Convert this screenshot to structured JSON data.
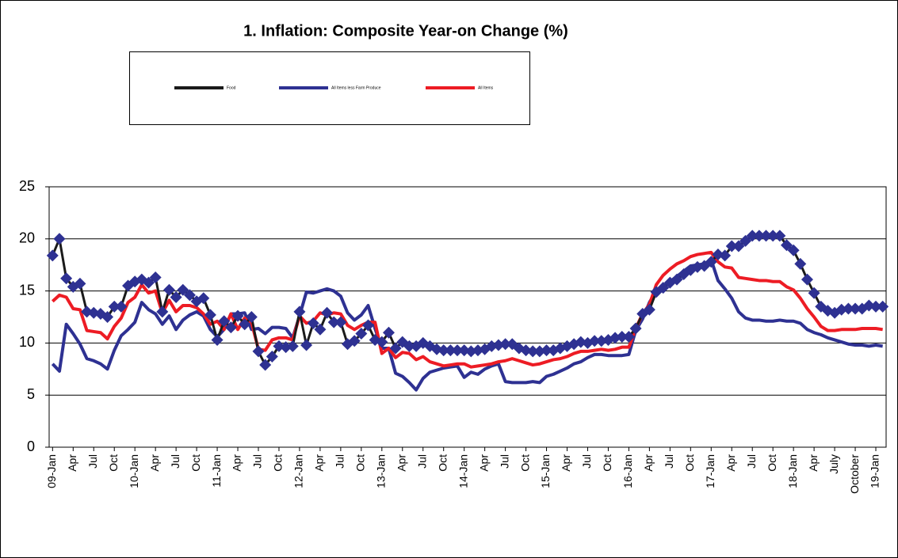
{
  "chart_data": {
    "type": "line",
    "title": "1. Inflation: Composite Year-on Change (%)",
    "categories": [
      "09-Jan",
      null,
      null,
      "Apr",
      null,
      null,
      "Jul",
      null,
      null,
      "Oct",
      null,
      null,
      "10-Jan",
      null,
      null,
      "Apr",
      null,
      null,
      "Jul",
      null,
      null,
      "Oct",
      null,
      null,
      "11-Jan",
      null,
      null,
      "Apr",
      null,
      null,
      "Jul",
      null,
      null,
      "Oct",
      null,
      null,
      "12-Jan",
      null,
      null,
      "Apr",
      null,
      null,
      "Jul",
      null,
      null,
      "Oct",
      null,
      null,
      "13-Jan",
      null,
      null,
      "Apr",
      null,
      null,
      "Jul",
      null,
      null,
      "Oct",
      null,
      null,
      "14-Jan",
      null,
      null,
      "Apr",
      null,
      null,
      "Jul",
      null,
      null,
      "Oct",
      null,
      null,
      "15-Jan",
      null,
      null,
      "Apr",
      null,
      null,
      "Jul",
      null,
      null,
      "Oct",
      null,
      null,
      "16-Jan",
      null,
      null,
      "Apr",
      null,
      null,
      "Jul",
      null,
      null,
      "Oct",
      null,
      null,
      "17-Jan",
      null,
      null,
      "Apr",
      null,
      null,
      "Jul",
      null,
      null,
      "Oct",
      null,
      null,
      "18-Jan",
      null,
      null,
      "Apr",
      null,
      null,
      "July",
      null,
      null,
      "October",
      null,
      null,
      "19-Jan",
      null
    ],
    "series": [
      {
        "name": "Food",
        "color": "#1a1a1a",
        "marker_color": "#2e3192",
        "values": [
          18.4,
          20.0,
          16.2,
          15.4,
          15.7,
          13.0,
          12.9,
          12.8,
          12.5,
          13.5,
          13.5,
          15.5,
          15.9,
          16.1,
          15.8,
          16.3,
          13.0,
          15.1,
          14.4,
          15.1,
          14.6,
          14.0,
          14.3,
          12.7,
          10.3,
          12.1,
          11.5,
          12.6,
          11.8,
          12.5,
          9.2,
          7.9,
          8.7,
          9.7,
          9.6,
          9.7,
          13.0,
          9.8,
          11.9,
          11.3,
          12.9,
          12.0,
          12.0,
          9.9,
          10.2,
          10.9,
          11.7,
          10.3,
          10.1,
          11.0,
          9.5,
          10.1,
          9.7,
          9.7,
          10.0,
          9.7,
          9.4,
          9.3,
          9.3,
          9.3,
          9.3,
          9.2,
          9.3,
          9.4,
          9.7,
          9.8,
          9.9,
          9.9,
          9.5,
          9.3,
          9.2,
          9.2,
          9.3,
          9.3,
          9.5,
          9.7,
          9.9,
          10.1,
          10.0,
          10.2,
          10.2,
          10.3,
          10.5,
          10.6,
          10.6,
          11.4,
          12.8,
          13.2,
          14.9,
          15.3,
          15.8,
          16.1,
          16.6,
          17.0,
          17.3,
          17.4,
          17.8,
          18.5,
          18.4,
          19.3,
          19.3,
          19.8,
          20.3,
          20.3,
          20.3,
          20.3,
          20.3,
          19.4,
          18.9,
          17.6,
          16.1,
          14.8,
          13.5,
          13.1,
          12.9,
          13.2,
          13.3,
          13.3,
          13.3,
          13.6,
          13.5,
          13.5
        ]
      },
      {
        "name": "All Items less Farm Produce",
        "color": "#2e3192",
        "values": [
          8.0,
          7.3,
          11.8,
          10.9,
          9.9,
          8.5,
          8.3,
          8.0,
          7.5,
          9.3,
          10.7,
          11.3,
          12.0,
          13.9,
          13.2,
          12.8,
          11.8,
          12.6,
          11.3,
          12.2,
          12.7,
          13.0,
          12.6,
          11.3,
          10.6,
          11.3,
          12.8,
          12.8,
          12.9,
          11.3,
          11.4,
          10.9,
          11.5,
          11.5,
          11.4,
          10.5,
          12.6,
          14.9,
          14.8,
          15.0,
          15.2,
          15.0,
          14.5,
          12.9,
          12.2,
          12.7,
          13.6,
          11.4,
          9.5,
          9.5,
          7.1,
          6.8,
          6.2,
          5.5,
          6.6,
          7.2,
          7.4,
          7.6,
          7.7,
          7.8,
          6.7,
          7.2,
          7.0,
          7.5,
          7.8,
          8.0,
          6.3,
          6.2,
          6.2,
          6.2,
          6.3,
          6.2,
          6.8,
          7.0,
          7.3,
          7.6,
          8.0,
          8.2,
          8.6,
          8.9,
          8.9,
          8.8,
          8.8,
          8.8,
          8.9,
          11.2,
          12.3,
          13.9,
          15.0,
          15.4,
          15.9,
          16.4,
          16.9,
          17.4,
          17.5,
          17.6,
          18.0,
          16.0,
          15.2,
          14.3,
          13.0,
          12.4,
          12.2,
          12.2,
          12.1,
          12.1,
          12.2,
          12.1,
          12.1,
          11.9,
          11.3,
          11.0,
          10.8,
          10.5,
          10.3,
          10.1,
          9.9,
          9.8,
          9.8,
          9.7,
          9.8,
          9.7
        ]
      },
      {
        "name": "All Items",
        "color": "#ed1c24",
        "values": [
          14.0,
          14.6,
          14.4,
          13.3,
          13.2,
          11.2,
          11.1,
          11.0,
          10.4,
          11.6,
          12.4,
          13.9,
          14.4,
          15.6,
          14.8,
          15.0,
          12.9,
          14.1,
          13.0,
          13.6,
          13.6,
          13.4,
          12.8,
          11.8,
          12.1,
          11.3,
          12.8,
          11.3,
          12.4,
          12.0,
          9.4,
          9.3,
          10.3,
          10.5,
          10.5,
          10.3,
          12.6,
          11.9,
          12.1,
          12.9,
          12.7,
          12.9,
          12.8,
          11.7,
          11.3,
          11.7,
          12.0,
          12.0,
          9.0,
          9.5,
          8.6,
          9.1,
          9.0,
          8.4,
          8.7,
          8.2,
          8.0,
          7.8,
          7.9,
          8.0,
          8.0,
          7.7,
          7.8,
          7.9,
          8.0,
          8.2,
          8.3,
          8.5,
          8.3,
          8.1,
          7.9,
          8.0,
          8.2,
          8.4,
          8.5,
          8.7,
          9.0,
          9.2,
          9.2,
          9.3,
          9.4,
          9.3,
          9.4,
          9.6,
          9.6,
          11.4,
          12.8,
          13.7,
          15.6,
          16.5,
          17.1,
          17.6,
          17.9,
          18.3,
          18.5,
          18.6,
          18.7,
          17.8,
          17.3,
          17.2,
          16.3,
          16.2,
          16.1,
          16.0,
          16.0,
          15.9,
          15.9,
          15.4,
          15.1,
          14.3,
          13.3,
          12.5,
          11.6,
          11.2,
          11.2,
          11.3,
          11.3,
          11.3,
          11.4,
          11.4,
          11.4,
          11.3
        ]
      }
    ],
    "ylim": [
      0,
      25
    ],
    "yticks": [
      0,
      5,
      10,
      15,
      20,
      25
    ],
    "grid": true,
    "legend": "top"
  }
}
